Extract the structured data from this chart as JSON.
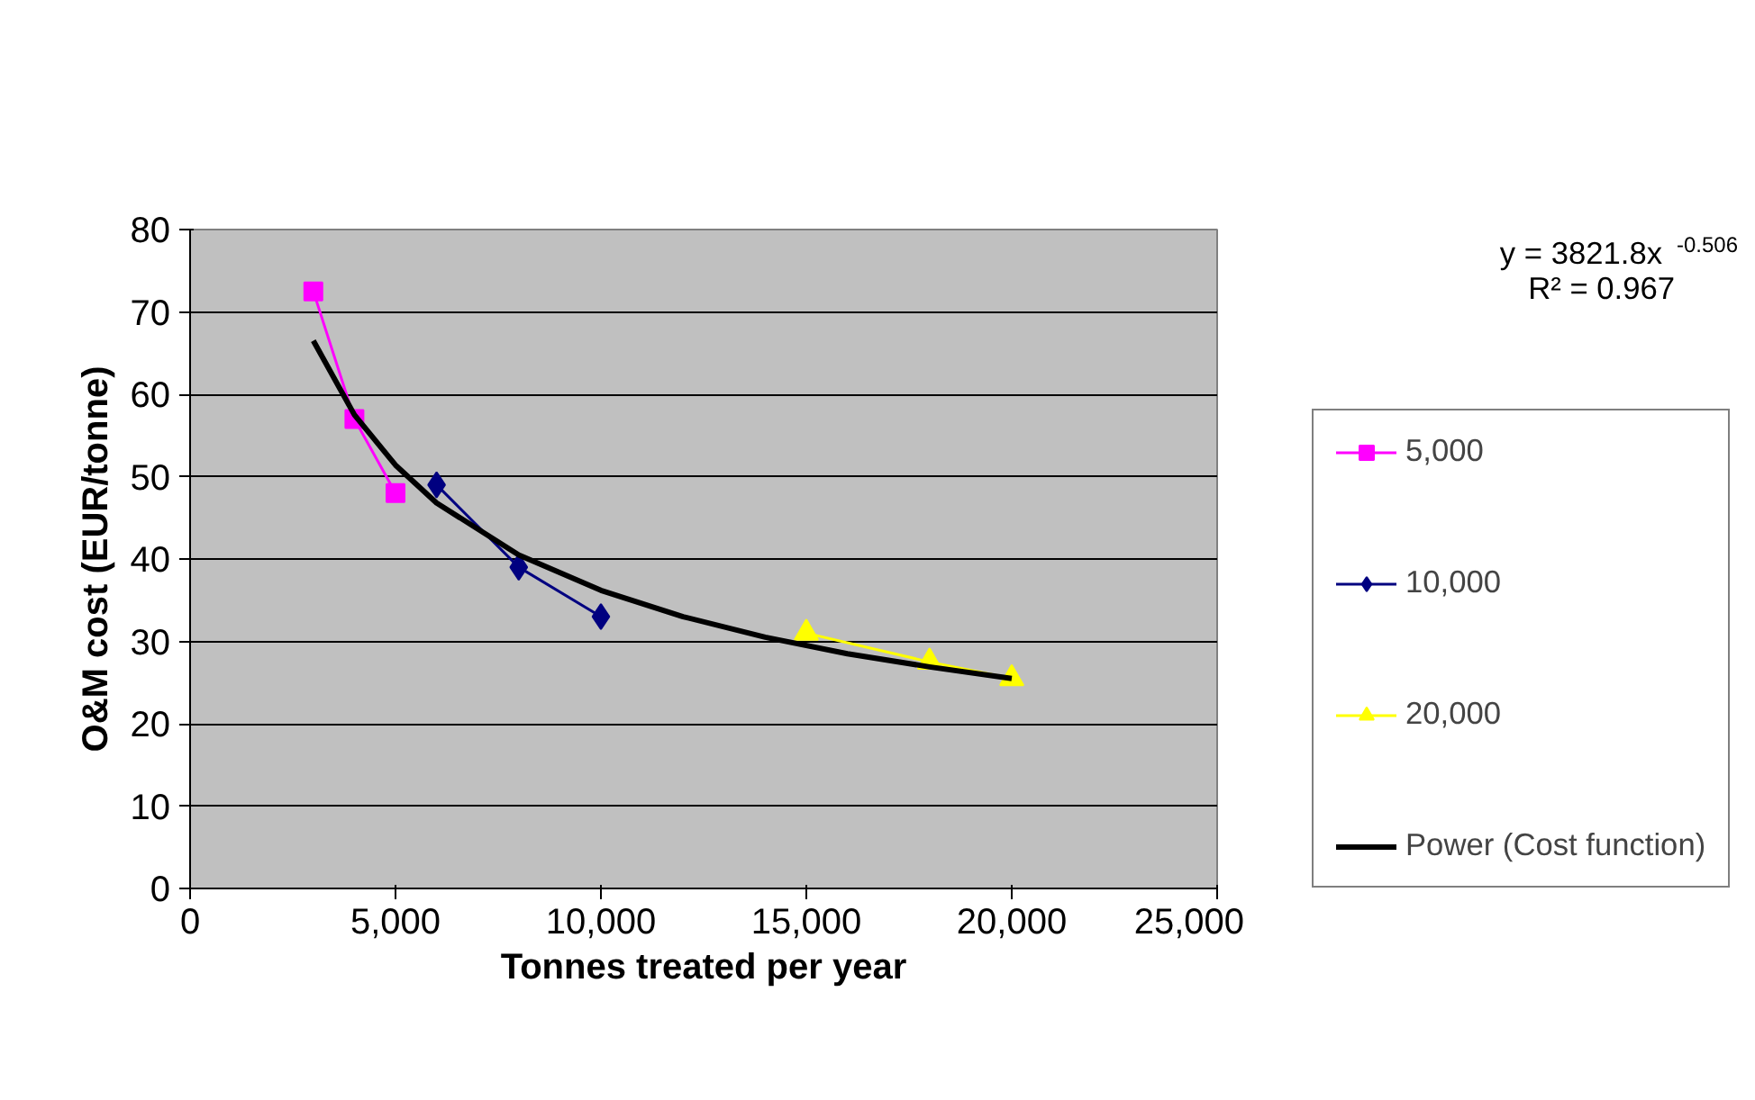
{
  "chart_data": {
    "type": "line",
    "xlabel": "Tonnes treated per year",
    "ylabel": "O&M cost (EUR/tonne)",
    "xlim": [
      0,
      25000
    ],
    "ylim": [
      0,
      80
    ],
    "xticks": [
      {
        "value": 0,
        "label": "0"
      },
      {
        "value": 5000,
        "label": "5,000"
      },
      {
        "value": 10000,
        "label": "10,000"
      },
      {
        "value": 15000,
        "label": "15,000"
      },
      {
        "value": 20000,
        "label": "20,000"
      },
      {
        "value": 25000,
        "label": "25,000"
      }
    ],
    "yticks": [
      0,
      10,
      20,
      30,
      40,
      50,
      60,
      70,
      80
    ],
    "grid": "y",
    "legend": "right",
    "line_style": "solid",
    "annotations": [
      "y = 3821.8x$^{-0.506}$",
      "R² = 0.967"
    ],
    "series": [
      {
        "name": "5,000",
        "color": "#ff00ff",
        "marker": "square",
        "x": [
          3000,
          4000,
          5000
        ],
        "values": [
          72.5,
          57,
          48
        ]
      },
      {
        "name": "10,000",
        "color": "#000080",
        "marker": "diamond",
        "x": [
          6000,
          8000,
          10000
        ],
        "values": [
          49,
          39,
          33
        ]
      },
      {
        "name": "20,000",
        "color": "#ffff00",
        "marker": "triangle",
        "x": [
          15000,
          18000,
          20000
        ],
        "values": [
          31,
          27.5,
          25.5
        ]
      },
      {
        "name": "Power (Cost function)",
        "color": "#000000",
        "marker": "none",
        "x": [
          3000,
          4000,
          5000,
          6000,
          8000,
          10000,
          12000,
          14000,
          16000,
          18000,
          20000
        ],
        "values": [
          66.5,
          57.5,
          51.4,
          46.8,
          40.5,
          36.2,
          33.0,
          30.5,
          28.5,
          26.9,
          25.5
        ]
      }
    ]
  }
}
